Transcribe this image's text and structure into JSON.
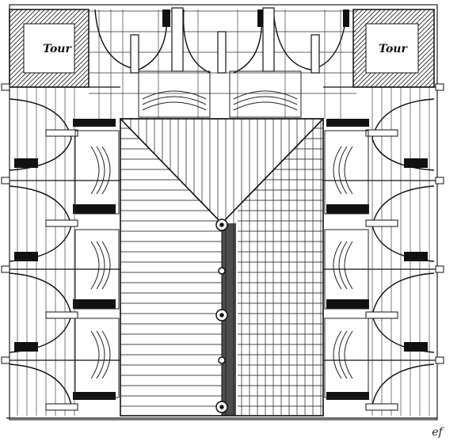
{
  "towers": [
    {
      "label": "Tour"
    },
    {
      "label": "Tour"
    }
  ],
  "signature": "ef"
}
